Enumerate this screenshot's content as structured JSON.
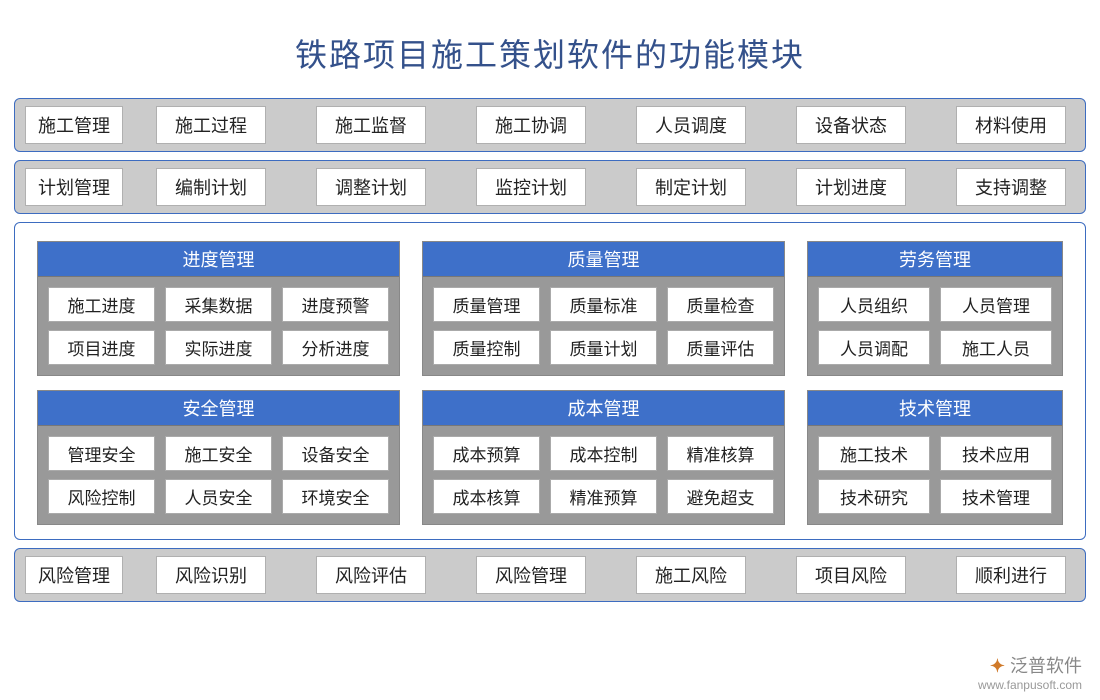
{
  "title": "铁路项目施工策划软件的功能模块",
  "colors": {
    "border": "#3d6cc0",
    "header_bg": "#3e70c9",
    "header_text": "#ffffff",
    "row_bg": "#cbcbcb",
    "module_bg": "#999999",
    "chip_bg": "#ffffff",
    "chip_border": "#b0b0b0",
    "title_color": "#34518b",
    "text": "#222222",
    "page_bg": "#ffffff"
  },
  "fontsize": {
    "title": 32,
    "label": 18,
    "chip": 18,
    "module_header": 18,
    "module_chip": 17
  },
  "rows_top": [
    {
      "label": "施工管理",
      "items": [
        "施工过程",
        "施工监督",
        "施工协调",
        "人员调度",
        "设备状态",
        "材料使用"
      ]
    },
    {
      "label": "计划管理",
      "items": [
        "编制计划",
        "调整计划",
        "监控计划",
        "制定计划",
        "计划进度",
        "支持调整"
      ]
    }
  ],
  "modules": [
    [
      {
        "size": "wide",
        "header": "进度管理",
        "rows": [
          [
            "施工进度",
            "采集数据",
            "进度预警"
          ],
          [
            "项目进度",
            "实际进度",
            "分析进度"
          ]
        ]
      },
      {
        "size": "wide",
        "header": "质量管理",
        "rows": [
          [
            "质量管理",
            "质量标准",
            "质量检查"
          ],
          [
            "质量控制",
            "质量计划",
            "质量评估"
          ]
        ]
      },
      {
        "size": "narrow",
        "header": "劳务管理",
        "rows": [
          [
            "人员组织",
            "人员管理"
          ],
          [
            "人员调配",
            "施工人员"
          ]
        ]
      }
    ],
    [
      {
        "size": "wide",
        "header": "安全管理",
        "rows": [
          [
            "管理安全",
            "施工安全",
            "设备安全"
          ],
          [
            "风险控制",
            "人员安全",
            "环境安全"
          ]
        ]
      },
      {
        "size": "wide",
        "header": "成本管理",
        "rows": [
          [
            "成本预算",
            "成本控制",
            "精准核算"
          ],
          [
            "成本核算",
            "精准预算",
            "避免超支"
          ]
        ]
      },
      {
        "size": "narrow",
        "header": "技术管理",
        "rows": [
          [
            "施工技术",
            "技术应用"
          ],
          [
            "技术研究",
            "技术管理"
          ]
        ]
      }
    ]
  ],
  "rows_bottom": [
    {
      "label": "风险管理",
      "items": [
        "风险识别",
        "风险评估",
        "风险管理",
        "施工风险",
        "项目风险",
        "顺利进行"
      ]
    }
  ],
  "watermark": {
    "brand": "泛普软件",
    "url": "www.fanpusoft.com"
  }
}
